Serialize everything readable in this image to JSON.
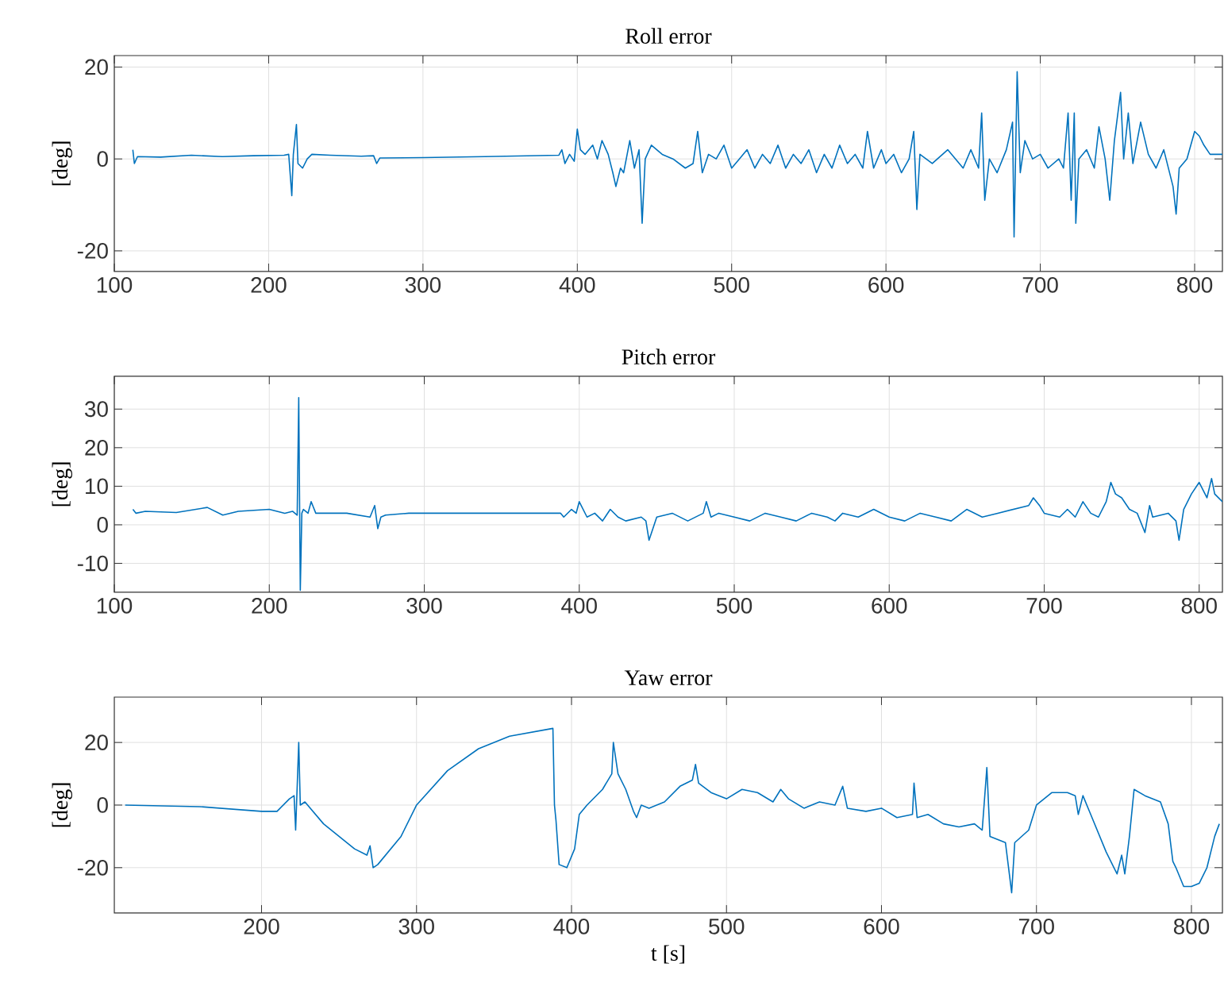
{
  "chart_data": [
    {
      "type": "line",
      "title": "Roll error",
      "ylabel": "[deg]",
      "xlim": [
        100,
        818
      ],
      "ylim": [
        -24.5,
        22.5
      ],
      "xticks": [
        100,
        200,
        300,
        400,
        500,
        600,
        700,
        800
      ],
      "yticks": [
        -20,
        0,
        20
      ],
      "grid": true,
      "x": [
        112,
        113,
        115,
        130,
        150,
        170,
        190,
        210,
        213,
        215,
        216,
        218,
        219,
        222,
        225,
        228,
        240,
        260,
        268,
        270,
        272,
        300,
        340,
        388,
        390,
        392,
        395,
        398,
        400,
        402,
        405,
        410,
        413,
        416,
        420,
        423,
        425,
        428,
        430,
        434,
        437,
        440,
        442,
        444,
        448,
        455,
        462,
        470,
        475,
        478,
        481,
        485,
        490,
        495,
        500,
        505,
        510,
        515,
        520,
        525,
        530,
        535,
        540,
        545,
        550,
        555,
        560,
        565,
        570,
        575,
        580,
        585,
        588,
        592,
        597,
        600,
        605,
        610,
        615,
        618,
        620,
        622,
        630,
        640,
        650,
        655,
        660,
        662,
        664,
        667,
        672,
        678,
        682,
        683,
        685,
        687,
        690,
        695,
        700,
        705,
        712,
        715,
        718,
        720,
        722,
        723,
        725,
        730,
        735,
        738,
        742,
        745,
        748,
        752,
        754,
        757,
        760,
        765,
        770,
        775,
        780,
        786,
        788,
        790,
        795,
        800,
        803,
        806,
        810,
        815,
        818
      ],
      "series": [
        {
          "color": "#0072bd",
          "values": [
            2,
            -1,
            0.5,
            0.4,
            0.8,
            0.5,
            0.7,
            0.8,
            1,
            -8,
            1,
            7.5,
            -1,
            -2,
            0,
            1,
            0.8,
            0.6,
            0.7,
            -1,
            0.2,
            0.3,
            0.5,
            0.8,
            2,
            -1,
            1,
            -0.5,
            6.5,
            2,
            1,
            3,
            0,
            4,
            1,
            -3,
            -6,
            -2,
            -3,
            4,
            -2,
            2,
            -14,
            0,
            3,
            1,
            0,
            -2,
            -1,
            6,
            -3,
            1,
            0,
            3,
            -2,
            0,
            2,
            -2,
            1,
            -1,
            3,
            -2,
            1,
            -1,
            2,
            -3,
            1,
            -2,
            3,
            -1,
            1,
            -2,
            6,
            -2,
            2,
            -1,
            1,
            -3,
            0,
            6,
            -11,
            1,
            -1,
            2,
            -2,
            2,
            -2,
            10,
            -9,
            0,
            -3,
            2,
            8,
            -17,
            19,
            -3,
            4,
            0,
            1,
            -2,
            0,
            -2,
            10,
            -9,
            10,
            -14,
            0,
            2,
            -2,
            7,
            0,
            -9,
            4,
            14.5,
            0,
            10,
            -1,
            8,
            1,
            -2,
            2,
            -6,
            -12,
            -2,
            0,
            6,
            5,
            3,
            1,
            1,
            1
          ]
        }
      ]
    },
    {
      "type": "line",
      "title": "Pitch error",
      "ylabel": "[deg]",
      "xlim": [
        100,
        815
      ],
      "ylim": [
        -17.5,
        38.5
      ],
      "xticks": [
        100,
        200,
        300,
        400,
        500,
        600,
        700,
        800
      ],
      "yticks": [
        -10,
        0,
        10,
        20,
        30
      ],
      "grid": true,
      "x": [
        112,
        114,
        120,
        140,
        160,
        170,
        180,
        200,
        210,
        215,
        218,
        219,
        220,
        221,
        222,
        225,
        227,
        230,
        250,
        265,
        268,
        270,
        272,
        275,
        290,
        320,
        360,
        388,
        390,
        395,
        398,
        400,
        405,
        410,
        415,
        420,
        425,
        430,
        440,
        443,
        445,
        450,
        460,
        470,
        480,
        482,
        485,
        490,
        500,
        510,
        520,
        530,
        540,
        550,
        560,
        565,
        570,
        580,
        590,
        600,
        610,
        620,
        630,
        640,
        650,
        660,
        670,
        680,
        690,
        693,
        697,
        700,
        710,
        715,
        720,
        725,
        730,
        735,
        740,
        743,
        746,
        750,
        755,
        760,
        765,
        768,
        770,
        780,
        785,
        787,
        790,
        795,
        800,
        805,
        808,
        810,
        815
      ],
      "series": [
        {
          "color": "#0072bd",
          "values": [
            4,
            3,
            3.5,
            3.2,
            4.5,
            2.5,
            3.5,
            4,
            3,
            3.5,
            2.5,
            33,
            -17,
            3,
            4,
            3,
            6,
            3,
            3,
            2,
            5,
            -1,
            2,
            2.5,
            3,
            3,
            3,
            3,
            2,
            4,
            3,
            6,
            2,
            3,
            1,
            4,
            2,
            1,
            2,
            1,
            -4,
            2,
            3,
            1,
            3,
            6,
            2,
            3,
            2,
            1,
            3,
            2,
            1,
            3,
            2,
            1,
            3,
            2,
            4,
            2,
            1,
            3,
            2,
            1,
            4,
            2,
            3,
            4,
            5,
            7,
            5,
            3,
            2,
            4,
            2,
            6,
            3,
            2,
            6,
            11,
            8,
            7,
            4,
            3,
            -2,
            5,
            2,
            3,
            1,
            -4,
            4,
            8,
            11,
            7,
            12,
            8,
            6
          ]
        }
      ]
    },
    {
      "type": "line",
      "title": "Yaw error",
      "ylabel": "[deg]",
      "xlabel": "t [s]",
      "xlim": [
        105,
        820
      ],
      "ylim": [
        -34.5,
        34.5
      ],
      "xticks": [
        200,
        300,
        400,
        500,
        600,
        700,
        800
      ],
      "yticks": [
        -20,
        0,
        20
      ],
      "grid": true,
      "x": [
        112,
        160,
        200,
        210,
        218,
        221,
        222,
        224,
        225,
        228,
        240,
        260,
        268,
        270,
        272,
        275,
        290,
        300,
        320,
        340,
        360,
        388,
        389,
        390,
        392,
        397,
        402,
        405,
        410,
        420,
        426,
        427,
        430,
        435,
        440,
        442,
        445,
        450,
        460,
        470,
        478,
        480,
        482,
        490,
        500,
        510,
        520,
        530,
        535,
        540,
        550,
        560,
        570,
        575,
        578,
        590,
        600,
        610,
        620,
        621,
        623,
        630,
        640,
        650,
        660,
        665,
        668,
        670,
        680,
        684,
        686,
        695,
        700,
        710,
        720,
        725,
        727,
        730,
        735,
        745,
        750,
        752,
        755,
        757,
        760,
        763,
        770,
        780,
        785,
        788,
        790,
        795,
        800,
        805,
        810,
        815,
        818
      ],
      "series": [
        {
          "color": "#0072bd",
          "values": [
            0,
            -0.5,
            -2,
            -2,
            2,
            3,
            -8,
            20,
            0,
            1,
            -6,
            -14,
            -16,
            -13,
            -20,
            -19,
            -10,
            0,
            11,
            18,
            22,
            24.5,
            0,
            -5,
            -19,
            -20,
            -14,
            -3,
            0,
            5,
            10,
            20,
            10,
            5,
            -2,
            -4,
            0,
            -1,
            1,
            6,
            8,
            13,
            7,
            4,
            2,
            5,
            4,
            1,
            5,
            2,
            -1,
            1,
            0,
            6,
            -1,
            -2,
            -1,
            -4,
            -3,
            7,
            -4,
            -3,
            -6,
            -7,
            -6,
            -8,
            12,
            -10,
            -12,
            -28,
            -12,
            -8,
            0,
            4,
            4,
            3,
            -3,
            3,
            -3,
            -15,
            -20,
            -22,
            -16,
            -22,
            -10,
            5,
            3,
            1,
            -6,
            -18,
            -20,
            -26,
            -26,
            -25,
            -20,
            -10,
            -6
          ]
        }
      ]
    }
  ]
}
